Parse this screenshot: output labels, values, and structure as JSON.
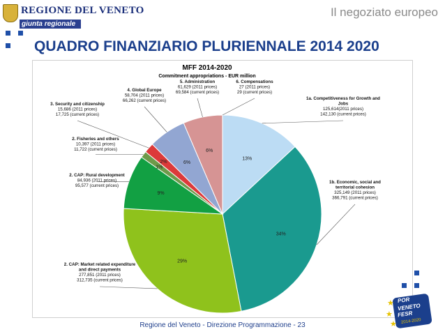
{
  "header": {
    "logo_text": "REGIONE DEL VENETO",
    "logo_subtitle": "giunta regionale",
    "section_title": "Il negoziato europeo"
  },
  "main": {
    "title": "QUADRO FINANZIARIO PLURIENNALE 2014 2020"
  },
  "chart_data": {
    "type": "pie",
    "title": "MFF 2014-2020",
    "subtitle": "Commitment appropriations - EUR million",
    "slices": [
      {
        "label": "1a. Competitiveness for Growth and Jobs",
        "lines": [
          "125,614(2011 prices)",
          "142,130 (current prices)"
        ],
        "value": 125614,
        "pct_label": "13%",
        "color": "#bcdcf4"
      },
      {
        "label": "1b. Economic, social and territorial cohesion",
        "lines": [
          "325,149 (2011 prices)",
          "366,791 (current prices)"
        ],
        "value": 325149,
        "pct_label": "34%",
        "color": "#1a9a8f"
      },
      {
        "label": "2. CAP: Market related expenditure and direct payments",
        "lines": [
          "277,851 (2011 prices)",
          "312,735 (current prices)"
        ],
        "value": 277851,
        "pct_label": "29%",
        "color": "#8fc21c"
      },
      {
        "label": "2. CAP: Rural development",
        "lines": [
          "84,936 (2011 prices)",
          "95,577 (current prices)"
        ],
        "value": 84936,
        "pct_label": "9%",
        "color": "#12a043"
      },
      {
        "label": "2. Fisheries and others",
        "lines": [
          "10,397 (2011 prices)",
          "11,722 (current prices)"
        ],
        "value": 10397,
        "pct_label": "1%",
        "color": "#6e9a4a"
      },
      {
        "label": "3. Security and citizenship",
        "lines": [
          "15,686 (2011 prices)",
          "17,725 (current prices)"
        ],
        "value": 15686,
        "pct_label": "2%",
        "color": "#dc3a3a"
      },
      {
        "label": "4. Global Europe",
        "lines": [
          "58,704 (2011 prices)",
          "66,262 (current prices)"
        ],
        "value": 58704,
        "pct_label": "6%",
        "color": "#92a6d2"
      },
      {
        "label": "5. Administration",
        "lines": [
          "61,629 (2011 prices)",
          "69,584 (current prices)"
        ],
        "value": 61629,
        "pct_label": "6%",
        "color": "#d69494"
      },
      {
        "label": "6. Compensations",
        "lines": [
          "27 (2011 prices)",
          "29 (current prices)"
        ],
        "value": 27,
        "pct_label": "",
        "color": "#e8a0b4"
      }
    ]
  },
  "footer": {
    "text": "Regione del Veneto - Direzione Programmazione - 23"
  },
  "badge": {
    "line1": "POR",
    "line2": "VENETO",
    "line3": "FESR",
    "line4": "2014-2020"
  },
  "colors": {
    "title_blue": "#1b3f8c",
    "accent_blue": "#1f4fa8",
    "grey": "#8a8a8a"
  }
}
